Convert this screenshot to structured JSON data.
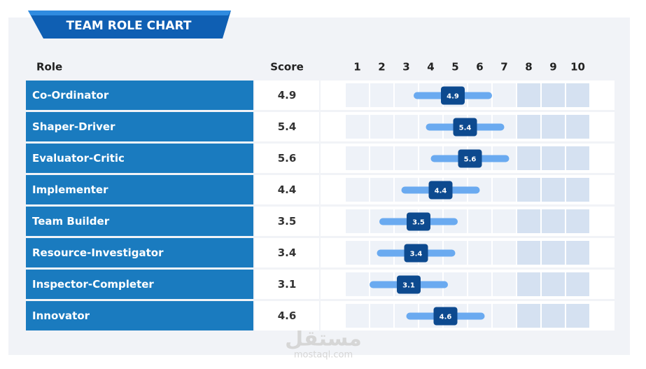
{
  "chart_data": {
    "type": "dot",
    "title": "TEAM ROLE CHART",
    "columns": [
      "Role",
      "Score"
    ],
    "categories": [
      "Co-Ordinator",
      "Shaper-Driver",
      "Evaluator-Critic",
      "Implementer",
      "Team Builder",
      "Resource-Investigator",
      "Inspector-Completer",
      "Innovator"
    ],
    "values": [
      4.9,
      5.4,
      5.6,
      4.4,
      3.5,
      3.4,
      3.1,
      4.6
    ],
    "xlim": [
      0.5,
      10.5
    ],
    "xticks": [
      1,
      2,
      3,
      4,
      5,
      6,
      7,
      8,
      9,
      10
    ],
    "color": "#0d4a8f",
    "watermark": [
      "مستقل",
      "mostaql.com"
    ]
  }
}
